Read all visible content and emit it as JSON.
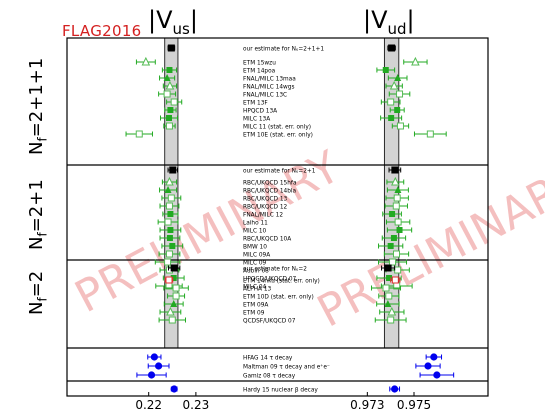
{
  "logo": "FLAG2016",
  "watermark": "PRELIMINARY",
  "panels": {
    "left_title_main": "|V",
    "left_title_sub": "us",
    "left_title_end": "|",
    "right_title_main": "|V",
    "right_title_sub": "ud",
    "right_title_end": "|"
  },
  "row_labels": {
    "nf211_main": "N",
    "nf211_sub": "f",
    "nf211_end": "=2+1+1",
    "nf21_main": "N",
    "nf21_sub": "f",
    "nf21_end": "=2+1",
    "nf2_main": "N",
    "nf2_sub": "f",
    "nf2_end": "=2"
  },
  "chart_data": {
    "type": "scatter",
    "title": "",
    "left_axis": {
      "label": "|Vus|",
      "ticks": [
        0.22,
        0.23
      ],
      "xlim": [
        0.2118,
        0.2385
      ],
      "band": [
        0.2234,
        0.2262
      ]
    },
    "right_axis": {
      "label": "|Vud|",
      "ticks": [
        0.973,
        0.975
      ],
      "xlim": [
        0.9714,
        0.9768
      ],
      "band": [
        0.97373,
        0.97435
      ]
    },
    "labels": [
      "our estimate for Nₑ=2+1+1",
      "ETM 15wzu",
      "ETM 14poa",
      "FNAL/MILC 13maa",
      "FNAL/MILC 14wgs",
      "FNAL/MILC 13C",
      "ETM 13F",
      "HPQCD 13A",
      "MILC 13A",
      "MILC 11 (stat. err. only)",
      "ETM 10E (stat. err. only)",
      "our estimate for Nₑ=2+1",
      "RBC/UKQCD 15hfa",
      "RBC/UKQCD 14bla",
      "RBC/UKQCD 13",
      "RBC/UKQCD 12",
      "FNAL/MILC 12",
      "Laiho 11",
      "MILC 10",
      "RBC/UKQCD 10A",
      "BMW 10",
      "MILC 09A",
      "MILC 09",
      "Aubin 08",
      "HPQCD/UKQCD 07",
      "MILC 04",
      "our estimate for Nₑ=2",
      "ETM 14nku (stat. err. only)",
      "ALPHA 13",
      "ETM 10D (stat. err. only)",
      "ETM 09A",
      "ETM 09",
      "QCDSF/UKQCD 07",
      "HFAG 14 τ decay",
      "Maltman 09 τ decay and e⁺e⁻",
      "Gamiz 08 τ decay",
      "Hardy 15 nuclear β decay"
    ],
    "series": [
      {
        "name": "Vus",
        "values": [
          0.2248,
          0.2194,
          0.2244,
          0.2239,
          0.2245,
          0.2239,
          0.2254,
          0.2246,
          0.2243,
          0.2244,
          0.218,
          0.2251,
          0.2244,
          0.2241,
          0.2248,
          0.2244,
          0.2246,
          0.2241,
          0.2246,
          0.2245,
          0.225,
          0.2244,
          0.224,
          0.2244,
          0.2253,
          0.2243,
          0.2254,
          0.2243,
          0.2258,
          0.2258,
          0.2253,
          0.2246,
          0.225,
          0.2212,
          0.2221,
          0.2206,
          0.2254
        ],
        "errors": [
          0.0007,
          0.002,
          0.0015,
          0.0016,
          0.0014,
          0.0018,
          0.0016,
          0.0012,
          0.0018,
          0.0012,
          0.0028,
          0.001,
          0.0015,
          0.0018,
          0.002,
          0.002,
          0.0016,
          0.0021,
          0.0022,
          0.0021,
          0.0022,
          0.0022,
          0.0026,
          0.002,
          0.0022,
          0.0028,
          0.0012,
          0.0008,
          0.0026,
          0.0018,
          0.002,
          0.0022,
          0.0028,
          0.0014,
          0.0022,
          0.0031,
          0.0006
        ]
      },
      {
        "name": "Vud",
        "values": [
          0.97404,
          0.97506,
          0.97379,
          0.9743,
          0.97415,
          0.97438,
          0.974,
          0.97428,
          0.97402,
          0.97442,
          0.9757,
          0.97418,
          0.9742,
          0.97431,
          0.97428,
          0.97424,
          0.97406,
          0.97432,
          0.97438,
          0.97414,
          0.974,
          0.97425,
          0.97408,
          0.9743,
          0.97393,
          0.97426,
          0.97389,
          0.9742,
          0.9738,
          0.97392,
          0.97388,
          0.97405,
          0.974,
          0.97585,
          0.9756,
          0.97598,
          0.97417
        ],
        "errors": [
          0.00016,
          0.0005,
          0.00038,
          0.0004,
          0.00035,
          0.00044,
          0.0004,
          0.0003,
          0.00045,
          0.00035,
          0.00068,
          0.00025,
          0.00036,
          0.00045,
          0.00048,
          0.00048,
          0.0004,
          0.0005,
          0.00052,
          0.0005,
          0.00052,
          0.00052,
          0.0006,
          0.0005,
          0.00052,
          0.00066,
          0.00028,
          0.0002,
          0.00062,
          0.00043,
          0.00048,
          0.00052,
          0.00066,
          0.00033,
          0.00052,
          0.00072,
          0.00021
        ]
      }
    ],
    "marker_types": [
      "estimate",
      "open-triangle",
      "filled-square",
      "filled-triangle",
      "open-triangle",
      "open-square",
      "open-square",
      "filled-square",
      "filled-square",
      "open-square",
      "open-square",
      "estimate",
      "open-triangle",
      "filled-triangle",
      "open-square",
      "open-square",
      "filled-square",
      "open-square",
      "filled-square",
      "filled-square",
      "filled-square",
      "open-square",
      "open-square",
      "open-square",
      "filled-square",
      "open-square",
      "estimate",
      "red-open-square",
      "open-square",
      "open-square",
      "filled-triangle",
      "open-triangle",
      "open-square",
      "blue-circle",
      "blue-circle",
      "blue-circle",
      "blue-circle"
    ],
    "colors": {
      "green_fill": "#22aa22",
      "green_open": "#55bb55",
      "band": "#d3d3d3",
      "red": "#e03030",
      "blue": "#0000ee",
      "estimate": "#000000",
      "watermark": "#f3b5b5"
    }
  }
}
